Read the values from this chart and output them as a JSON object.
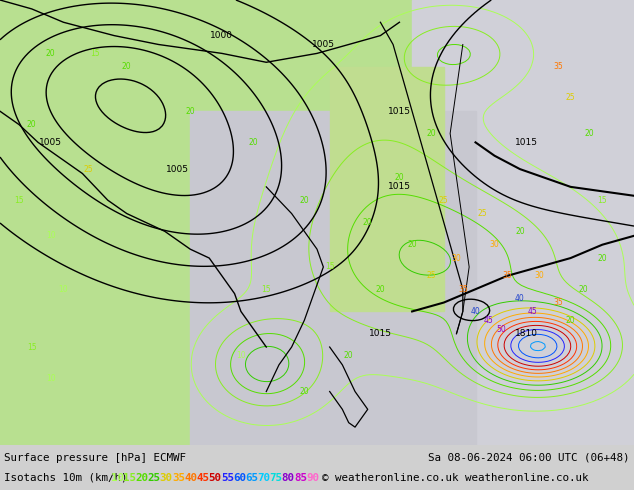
{
  "title_line1": "Surface pressure [hPa] ECMWF",
  "title_line2": "Isotachs 10m (km/h)",
  "date_str": "Sa 08-06-2024 06:00 UTC (06+48)",
  "copyright": "© weatheronline.co.uk",
  "bg_color": "#d0d0d0",
  "bottom_bar_color": "#d0d0d0",
  "legend_values": [
    10,
    15,
    20,
    25,
    30,
    35,
    40,
    45,
    50,
    55,
    60,
    65,
    70,
    75,
    80,
    85,
    90
  ],
  "legend_colors": [
    "#aaff55",
    "#88ee22",
    "#55dd00",
    "#33cc00",
    "#ddcc00",
    "#ffaa00",
    "#ff7700",
    "#ff3300",
    "#cc0000",
    "#2222ff",
    "#0055ff",
    "#0099ff",
    "#00ccff",
    "#00dddd",
    "#8800cc",
    "#cc00cc",
    "#ff66cc"
  ],
  "figsize": [
    6.34,
    4.9
  ],
  "dpi": 100,
  "map_left_color": "#aade88",
  "map_right_color": "#d8d8e8",
  "map_mid_color": "#cccccc",
  "wind_contour_colors": {
    "10": "#aaff55",
    "15": "#88ee22",
    "20": "#55dd00",
    "25": "#ddcc00",
    "30": "#ffaa00",
    "35": "#ff7700",
    "40": "#2244cc",
    "45": "#8800cc",
    "50": "#9900bb",
    "55": "#0055ff",
    "60": "#0099ff",
    "65": "#00ccff",
    "70": "#00dddd",
    "75": "#55ee55",
    "80": "#dddd00",
    "85": "#cc00cc",
    "90": "#ff66cc"
  }
}
